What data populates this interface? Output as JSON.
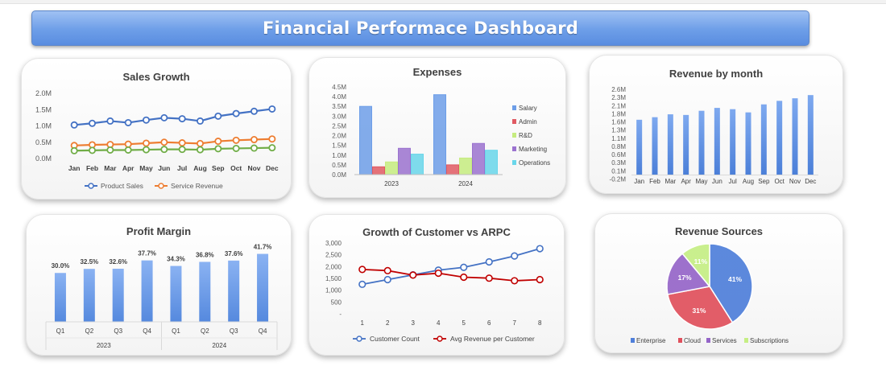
{
  "dashboard": {
    "title": "Financial Performace Dashboard"
  },
  "colors": {
    "product_sales": "#4472c4",
    "service_revenue": "#ed7d31",
    "third_line": "#70ad47",
    "salary": "#6d9ee8",
    "admin": "#e05a63",
    "rnd": "#c6ec7f",
    "marketing": "#9b72cf",
    "operations": "#69d6ea",
    "bar_blue": "#6d9ee8",
    "customer": "#4472c4",
    "arpc": "#c00000",
    "enterprise": "#4f7fda",
    "cloud": "#e0505c",
    "services": "#9565c8",
    "subscriptions": "#c5ee84"
  },
  "chart_data": [
    {
      "id": "sales_growth",
      "type": "line",
      "title": "Sales Growth",
      "categories": [
        "Jan",
        "Feb",
        "Mar",
        "Apr",
        "May",
        "Jun",
        "Jul",
        "Aug",
        "Sep",
        "Oct",
        "Nov",
        "Dec"
      ],
      "yticks": [
        "2.0M",
        "1.5M",
        "1.0M",
        "0.5M",
        "0.0M"
      ],
      "ylim": [
        0,
        2.0
      ],
      "series": [
        {
          "name": "Product Sales",
          "values": [
            1.03,
            1.08,
            1.15,
            1.1,
            1.18,
            1.25,
            1.22,
            1.15,
            1.3,
            1.38,
            1.45,
            1.52
          ]
        },
        {
          "name": "Service Revenue",
          "values": [
            0.4,
            0.42,
            0.43,
            0.44,
            0.47,
            0.5,
            0.48,
            0.46,
            0.53,
            0.56,
            0.58,
            0.6
          ]
        },
        {
          "name": "",
          "values": [
            0.24,
            0.25,
            0.26,
            0.26,
            0.27,
            0.28,
            0.28,
            0.27,
            0.3,
            0.31,
            0.32,
            0.33
          ]
        }
      ],
      "legend": [
        {
          "label": "Product Sales"
        },
        {
          "label": "Service Revenue"
        }
      ]
    },
    {
      "id": "expenses",
      "type": "bar",
      "title": "Expenses",
      "categories": [
        "2023",
        "2024"
      ],
      "yticks": [
        "4.5M",
        "4.0M",
        "3.5M",
        "3.0M",
        "2.5M",
        "2.0M",
        "1.5M",
        "1.0M",
        "0.5M",
        "0.0M"
      ],
      "ylim": [
        0,
        4.5
      ],
      "series": [
        {
          "name": "Salary",
          "values": [
            3.5,
            4.1
          ]
        },
        {
          "name": "Admin",
          "values": [
            0.4,
            0.5
          ]
        },
        {
          "name": "R&D",
          "values": [
            0.65,
            0.85
          ]
        },
        {
          "name": "Marketing",
          "values": [
            1.35,
            1.6
          ]
        },
        {
          "name": "Operations",
          "values": [
            1.05,
            1.25
          ]
        }
      ],
      "legend": [
        {
          "label": "Salary"
        },
        {
          "label": "Admin"
        },
        {
          "label": "R&D"
        },
        {
          "label": "Marketing"
        },
        {
          "label": "Operations"
        }
      ]
    },
    {
      "id": "revenue_by_month",
      "type": "bar",
      "title": "Revenue by month",
      "categories": [
        "Jan",
        "Feb",
        "Mar",
        "Apr",
        "May",
        "Jun",
        "Jul",
        "Aug",
        "Sep",
        "Oct",
        "Nov",
        "Dec"
      ],
      "yticks": [
        "2.6M",
        "2.3M",
        "2.1M",
        "1.8M",
        "1.6M",
        "1.3M",
        "1.1M",
        "0.8M",
        "0.6M",
        "0.3M",
        "0.1M",
        "-0.2M"
      ],
      "ylim": [
        -0.2,
        2.6
      ],
      "values": [
        1.65,
        1.73,
        1.82,
        1.8,
        1.93,
        2.02,
        1.98,
        1.88,
        2.13,
        2.24,
        2.32,
        2.42
      ]
    },
    {
      "id": "profit_margin",
      "type": "bar",
      "title": "Profit Margin",
      "groups": [
        "2023",
        "2024"
      ],
      "categories": [
        "Q1",
        "Q2",
        "Q3",
        "Q4",
        "Q1",
        "Q2",
        "Q3",
        "Q4"
      ],
      "values": [
        30.0,
        32.5,
        32.6,
        37.7,
        34.3,
        36.8,
        37.6,
        41.7
      ],
      "labels": [
        "30.0%",
        "32.5%",
        "32.6%",
        "37.7%",
        "34.3%",
        "36.8%",
        "37.6%",
        "41.7%"
      ],
      "ylim": [
        0,
        45
      ]
    },
    {
      "id": "customer_vs_arpc",
      "type": "line",
      "title": "Growth of Customer vs ARPC",
      "categories": [
        "1",
        "2",
        "3",
        "4",
        "5",
        "6",
        "7",
        "8"
      ],
      "yticks": [
        "3,000",
        "2,500",
        "2,000",
        "1,500",
        "1,000",
        "500",
        "-"
      ],
      "ylim": [
        0,
        3000
      ],
      "series": [
        {
          "name": "Customer Count",
          "values": [
            1250,
            1450,
            1650,
            1850,
            1970,
            2200,
            2450,
            2760
          ]
        },
        {
          "name": "Avg Revenue per Customer",
          "values": [
            1880,
            1830,
            1640,
            1720,
            1550,
            1510,
            1400,
            1450
          ]
        }
      ],
      "legend": [
        {
          "label": "Customer Count"
        },
        {
          "label": "Avg Revenue per Customer"
        }
      ]
    },
    {
      "id": "revenue_sources",
      "type": "pie",
      "title": "Revenue Sources",
      "slices": [
        {
          "label": "Enterprise",
          "value": 41,
          "text": "41%"
        },
        {
          "label": "Cloud",
          "value": 31,
          "text": "31%"
        },
        {
          "label": "Services",
          "value": 17,
          "text": "17%"
        },
        {
          "label": "Subscriptions",
          "value": 11,
          "text": "11%"
        }
      ],
      "legend": [
        {
          "label": "Enterprise"
        },
        {
          "label": "Cloud"
        },
        {
          "label": "Services"
        },
        {
          "label": "Subscriptions"
        }
      ]
    }
  ]
}
